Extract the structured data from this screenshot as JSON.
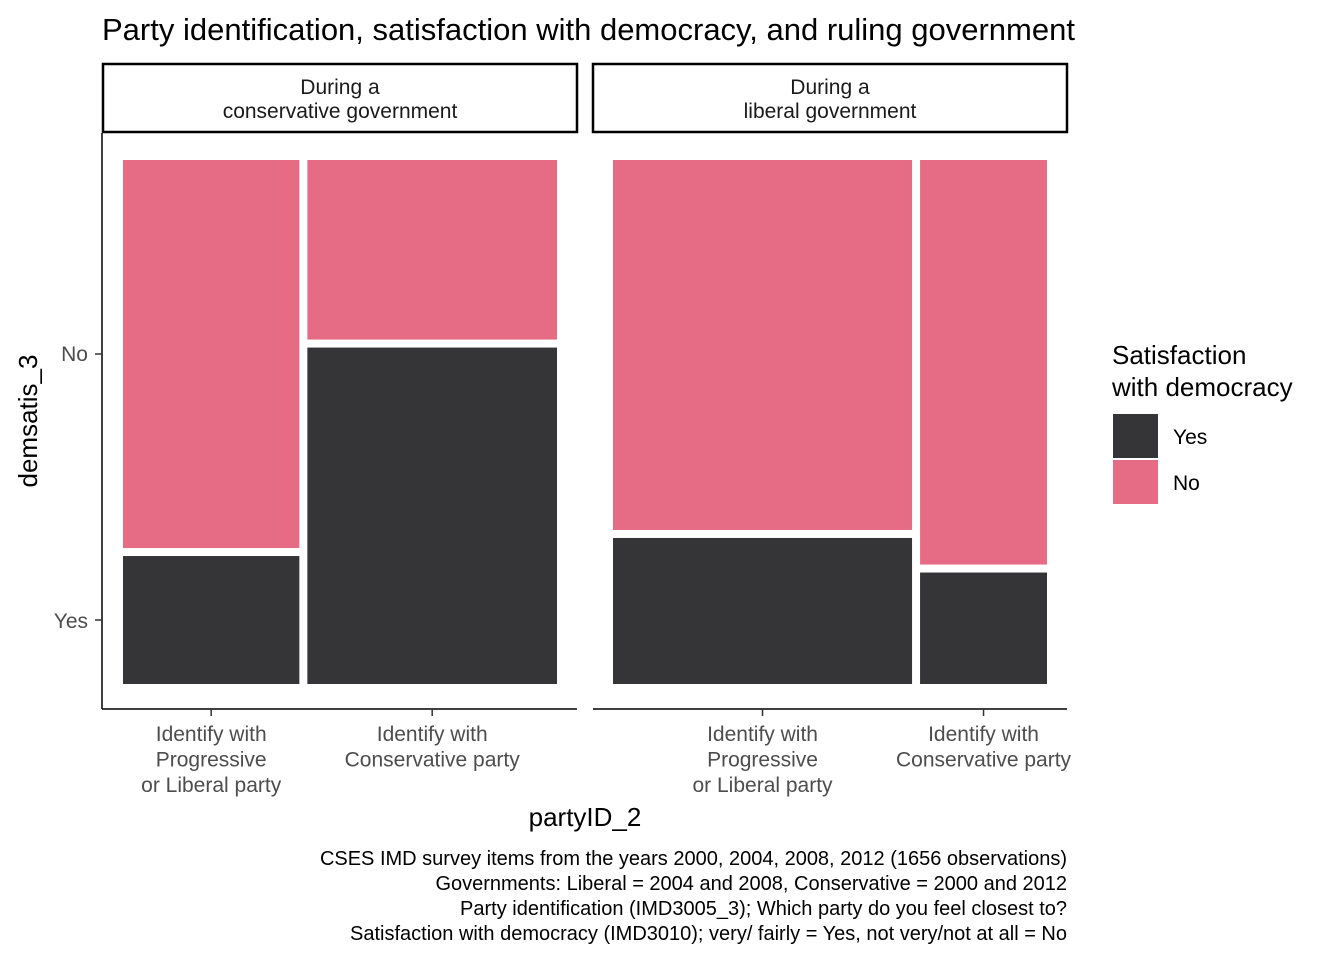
{
  "chart_data": {
    "type": "mosaic",
    "title": "Party identification, satisfaction with democracy, and ruling government",
    "xlabel": "partyID_2",
    "ylabel": "demsatis_3",
    "y_ticks": [
      "No",
      "Yes"
    ],
    "legend": {
      "title_lines": [
        "Satisfaction",
        "with democracy"
      ],
      "placement": "right",
      "items": [
        {
          "label": "Yes",
          "color": "#353537"
        },
        {
          "label": "No",
          "color": "#e66c85"
        }
      ]
    },
    "panels": [
      {
        "strip_lines": [
          "During a",
          "conservative government"
        ],
        "columns": [
          {
            "label_lines": [
              "Identify with",
              "Progressive",
              "or Liberal party"
            ],
            "width_share": 0.414,
            "yes_share": 0.248
          },
          {
            "label_lines": [
              "Identify with",
              "Conservative party"
            ],
            "width_share": 0.586,
            "yes_share": 0.652
          }
        ]
      },
      {
        "strip_lines": [
          "During a",
          "liberal government"
        ],
        "columns": [
          {
            "label_lines": [
              "Identify with",
              "Progressive",
              "or Liberal party"
            ],
            "width_share": 0.702,
            "yes_share": 0.283
          },
          {
            "label_lines": [
              "Identify with",
              "Conservative party"
            ],
            "width_share": 0.298,
            "yes_share": 0.216
          }
        ]
      }
    ],
    "caption_lines": [
      "CSES IMD survey items from the years 2000, 2004, 2008, 2012 (1656 observations)",
      "Governments: Liberal = 2004 and 2008, Conservative = 2000 and 2012",
      "Party identification (IMD3005_3); Which party do you feel closest to?",
      "Satisfaction with democracy (IMD3010); very/ fairly = Yes, not very/not at all = No"
    ],
    "grid": false
  }
}
